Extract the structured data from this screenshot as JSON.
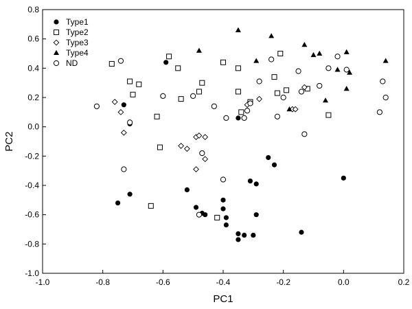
{
  "chart_data": {
    "type": "scatter",
    "title": "",
    "xlabel": "PC1",
    "ylabel": "PC2",
    "xlim": [
      -1.0,
      0.2
    ],
    "ylim": [
      -1.0,
      0.8
    ],
    "xticks": [
      -1.0,
      -0.8,
      -0.6,
      -0.4,
      -0.2,
      0.0,
      0.2
    ],
    "yticks": [
      -1.0,
      -0.8,
      -0.6,
      -0.4,
      -0.2,
      0.0,
      0.2,
      0.4,
      0.6,
      0.8
    ],
    "xtick_labels": [
      "-1.0",
      "-0.8",
      "-0.6",
      "-0.4",
      "-0.2",
      "0.0",
      "0.2"
    ],
    "ytick_labels": [
      "-1.0",
      "-0.8",
      "-0.6",
      "-0.4",
      "-0.2",
      "0.0",
      "0.2",
      "0.4",
      "0.6",
      "0.8"
    ],
    "grid": false,
    "legend_position": "top-left",
    "series": [
      {
        "name": "Type1",
        "marker": "filled-circle",
        "points": [
          [
            -0.59,
            0.44
          ],
          [
            -0.73,
            0.15
          ],
          [
            -0.71,
            0.02
          ],
          [
            -0.35,
            0.06
          ],
          [
            -0.71,
            -0.46
          ],
          [
            -0.75,
            -0.52
          ],
          [
            -0.52,
            -0.43
          ],
          [
            -0.49,
            -0.55
          ],
          [
            -0.47,
            -0.59
          ],
          [
            -0.46,
            -0.6
          ],
          [
            -0.4,
            -0.5
          ],
          [
            -0.4,
            -0.56
          ],
          [
            -0.39,
            -0.62
          ],
          [
            -0.39,
            -0.67
          ],
          [
            -0.35,
            -0.73
          ],
          [
            -0.35,
            -0.77
          ],
          [
            -0.33,
            -0.74
          ],
          [
            -0.3,
            -0.74
          ],
          [
            -0.31,
            -0.37
          ],
          [
            -0.29,
            -0.39
          ],
          [
            -0.29,
            -0.6
          ],
          [
            -0.25,
            -0.21
          ],
          [
            -0.23,
            -0.26
          ],
          [
            -0.14,
            -0.72
          ],
          [
            0.0,
            -0.35
          ]
        ]
      },
      {
        "name": "Type2",
        "marker": "open-square",
        "points": [
          [
            -0.77,
            0.43
          ],
          [
            -0.71,
            0.31
          ],
          [
            -0.68,
            0.29
          ],
          [
            -0.7,
            0.22
          ],
          [
            -0.62,
            0.07
          ],
          [
            -0.61,
            -0.14
          ],
          [
            -0.58,
            0.48
          ],
          [
            -0.55,
            0.4
          ],
          [
            -0.54,
            0.19
          ],
          [
            -0.48,
            0.24
          ],
          [
            -0.47,
            0.3
          ],
          [
            -0.4,
            0.44
          ],
          [
            -0.35,
            0.4
          ],
          [
            -0.35,
            0.24
          ],
          [
            -0.34,
            0.1
          ],
          [
            -0.31,
            0.17
          ],
          [
            -0.23,
            0.34
          ],
          [
            -0.22,
            0.23
          ],
          [
            -0.21,
            0.5
          ],
          [
            -0.19,
            0.25
          ],
          [
            -0.12,
            0.26
          ],
          [
            -0.05,
            0.08
          ],
          [
            -0.64,
            -0.54
          ],
          [
            -0.42,
            -0.62
          ]
        ]
      },
      {
        "name": "Type3",
        "marker": "open-diamond",
        "points": [
          [
            -0.76,
            0.17
          ],
          [
            -0.74,
            0.1
          ],
          [
            -0.73,
            -0.04
          ],
          [
            -0.54,
            -0.13
          ],
          [
            -0.52,
            -0.15
          ],
          [
            -0.49,
            -0.07
          ],
          [
            -0.48,
            -0.06
          ],
          [
            -0.49,
            -0.29
          ],
          [
            -0.46,
            -0.22
          ],
          [
            -0.46,
            -0.07
          ],
          [
            -0.32,
            0.15
          ],
          [
            -0.28,
            0.19
          ],
          [
            -0.13,
            0.27
          ],
          [
            -0.17,
            0.12
          ],
          [
            -0.16,
            0.12
          ]
        ]
      },
      {
        "name": "Type4",
        "marker": "filled-triangle",
        "points": [
          [
            -0.48,
            0.52
          ],
          [
            -0.35,
            0.66
          ],
          [
            -0.29,
            0.45
          ],
          [
            -0.24,
            0.62
          ],
          [
            -0.13,
            0.56
          ],
          [
            -0.18,
            0.12
          ],
          [
            -0.1,
            0.49
          ],
          [
            -0.08,
            0.5
          ],
          [
            -0.02,
            0.39
          ],
          [
            0.01,
            0.51
          ],
          [
            0.02,
            0.37
          ],
          [
            0.01,
            0.26
          ],
          [
            -0.06,
            0.18
          ],
          [
            0.14,
            0.45
          ]
        ]
      },
      {
        "name": "ND",
        "marker": "open-circle",
        "points": [
          [
            -0.82,
            0.14
          ],
          [
            -0.74,
            0.45
          ],
          [
            -0.71,
            0.03
          ],
          [
            -0.73,
            -0.29
          ],
          [
            -0.6,
            0.21
          ],
          [
            -0.5,
            0.21
          ],
          [
            -0.43,
            0.14
          ],
          [
            -0.39,
            0.06
          ],
          [
            -0.33,
            0.06
          ],
          [
            -0.32,
            0.11
          ],
          [
            -0.31,
            0.16
          ],
          [
            -0.28,
            0.31
          ],
          [
            -0.22,
            0.07
          ],
          [
            -0.2,
            0.2
          ],
          [
            -0.15,
            0.38
          ],
          [
            -0.14,
            0.24
          ],
          [
            -0.13,
            -0.05
          ],
          [
            -0.08,
            0.28
          ],
          [
            -0.05,
            0.4
          ],
          [
            -0.02,
            0.48
          ],
          [
            0.12,
            0.1
          ],
          [
            0.13,
            0.31
          ],
          [
            0.14,
            0.2
          ],
          [
            -0.4,
            -0.36
          ],
          [
            -0.47,
            -0.18
          ],
          [
            -0.48,
            -0.6
          ],
          [
            -0.24,
            0.46
          ],
          [
            0.01,
            0.39
          ]
        ]
      }
    ]
  }
}
